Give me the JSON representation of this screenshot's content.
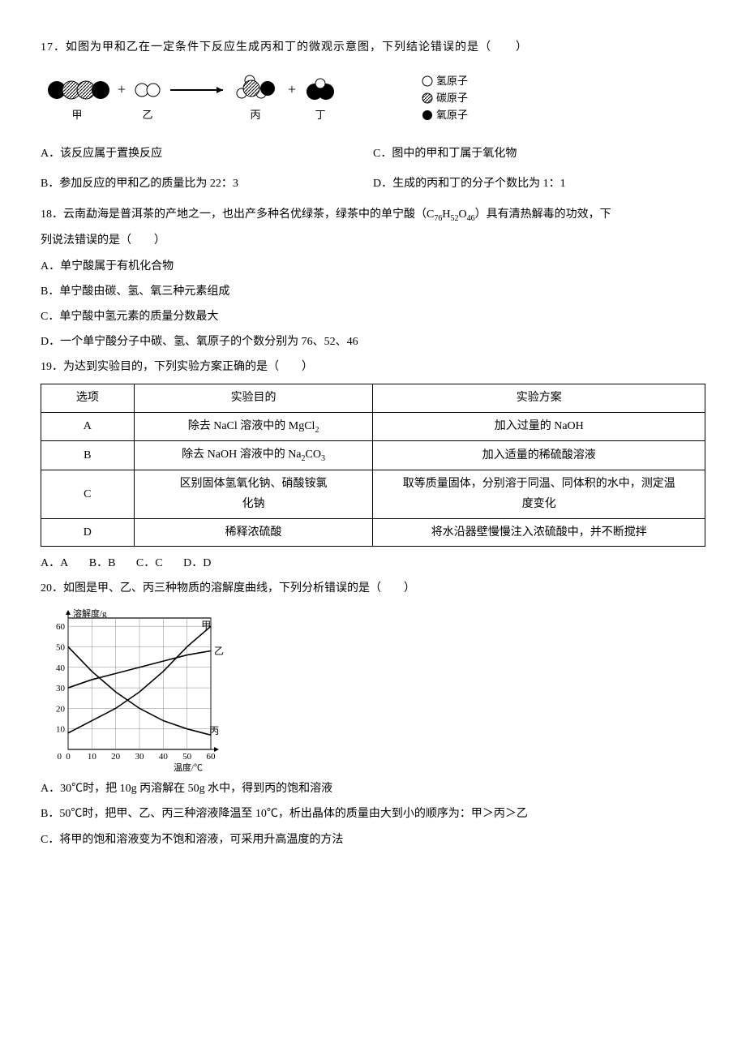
{
  "q17": {
    "stem": "17．如图为甲和乙在一定条件下反应生成丙和丁的微观示意图，下列结论错误的是（　　）",
    "optA": "A．该反应属于置换反应",
    "optB": "B．参加反应的甲和乙的质量比为 22：3",
    "optC": "C．图中的甲和丁属于氧化物",
    "optD": "D．生成的丙和丁的分子个数比为 1：1",
    "legend_h": "氢原子",
    "legend_c": "碳原子",
    "legend_o": "氧原子",
    "labels": {
      "jia": "甲",
      "yi": "乙",
      "bing": "丙",
      "ding": "丁"
    },
    "colors": {
      "h_fill": "#ffffff",
      "h_stroke": "#000",
      "c_fill": "url(#hatch)",
      "o_fill": "#000",
      "arrow": "#000"
    }
  },
  "q18": {
    "stem_a": "18．云南勐海是普洱茶的产地之一，也出产多种名优绿茶，绿茶中的单宁酸（C",
    "sub1": "76",
    "mid1": "H",
    "sub2": "52",
    "mid2": "O",
    "sub3": "46",
    "stem_b": "）具有清热解毒的功效，下",
    "stem_line2": "列说法错误的是（　　）",
    "optA": "A．单宁酸属于有机化合物",
    "optB": "B．单宁酸由碳、氢、氧三种元素组成",
    "optC": "C．单宁酸中氢元素的质量分数最大",
    "optD": "D．一个单宁酸分子中碳、氢、氧原子的个数分别为 76、52、46"
  },
  "q19": {
    "stem": "19．为达到实验目的，下列实验方案正确的是（　　）",
    "headers": {
      "c1": "选项",
      "c2": "实验目的",
      "c3": "实验方案"
    },
    "rows": [
      {
        "opt": "A",
        "purpose_pre": "除去 NaCl 溶液中的 MgCl",
        "purpose_sub": "2",
        "plan": "加入过量的 NaOH"
      },
      {
        "opt": "B",
        "purpose_pre": "除去 NaOH 溶液中的 Na",
        "purpose_sub": "2",
        "purpose_mid": "CO",
        "purpose_sub2": "3",
        "plan": "加入适量的稀硫酸溶液"
      },
      {
        "opt": "C",
        "purpose_l1": "区别固体氢氧化钠、硝酸铵氯",
        "purpose_l2": "化钠",
        "plan_l1": "取等质量固体，分别溶于同温、同体积的水中，测定温",
        "plan_l2": "度变化"
      },
      {
        "opt": "D",
        "purpose": "稀释浓硫酸",
        "plan": "将水沿器壁慢慢注入浓硫酸中，并不断搅拌"
      }
    ],
    "ans_opts": {
      "A": "A．A",
      "B": "B．B",
      "C": "C．C",
      "D": "D．D"
    }
  },
  "q20": {
    "stem": "20．如图是甲、乙、丙三种物质的溶解度曲线，下列分析错误的是（　　）",
    "optA": "A．30℃时，把 10g 丙溶解在 50g 水中，得到丙的饱和溶液",
    "optB": "B．50℃时，把甲、乙、丙三种溶液降温至 10℃，析出晶体的质量由大到小的顺序为：甲＞丙＞乙",
    "optC": "C．将甲的饱和溶液变为不饱和溶液，可采用升高温度的方法",
    "chart": {
      "ylabel": "溶解度/g",
      "xlabel": "温度/℃",
      "xticks": [
        0,
        10,
        20,
        30,
        40,
        50,
        60
      ],
      "yticks": [
        10,
        20,
        30,
        40,
        50,
        60
      ],
      "lines": {
        "jia": {
          "label": "甲",
          "pts": [
            [
              0,
              8
            ],
            [
              10,
              14
            ],
            [
              20,
              20
            ],
            [
              30,
              28
            ],
            [
              40,
              38
            ],
            [
              50,
              50
            ],
            [
              60,
              60
            ]
          ]
        },
        "yi": {
          "label": "乙",
          "pts": [
            [
              0,
              30
            ],
            [
              10,
              34
            ],
            [
              20,
              37
            ],
            [
              30,
              40
            ],
            [
              40,
              43
            ],
            [
              50,
              46
            ],
            [
              60,
              48
            ]
          ]
        },
        "bing": {
          "label": "丙",
          "pts": [
            [
              0,
              50
            ],
            [
              10,
              38
            ],
            [
              20,
              28
            ],
            [
              30,
              20
            ],
            [
              40,
              14
            ],
            [
              50,
              10
            ],
            [
              60,
              7
            ]
          ]
        }
      },
      "grid_color": "#888",
      "line_color": "#000",
      "bg": "#fff",
      "font_size": 11
    }
  }
}
